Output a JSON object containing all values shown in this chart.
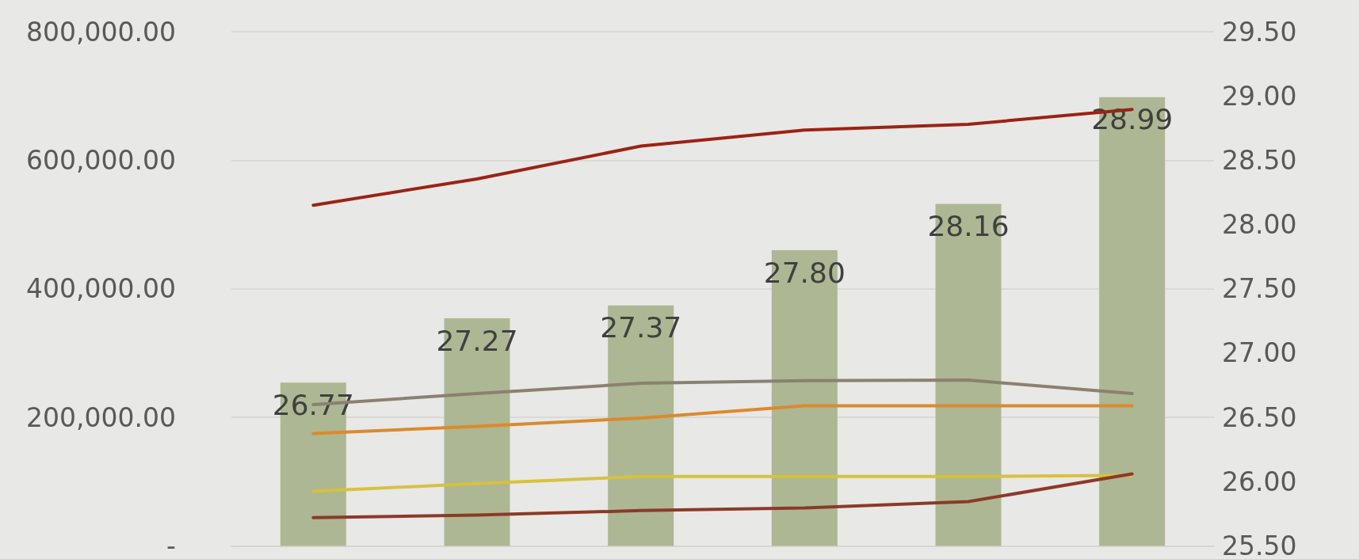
{
  "chart_data": {
    "type": "bar",
    "categories": [
      null,
      null,
      null,
      null,
      null,
      null
    ],
    "series": [
      {
        "axis": "y2",
        "color": "#adb793",
        "values": [
          26.77,
          27.27,
          27.37,
          27.8,
          28.16,
          28.99
        ],
        "value_labels": [
          "26.77",
          "27.27",
          "27.37",
          "27.80",
          "28.16",
          "28.99"
        ]
      },
      {
        "type": "line",
        "color": "#9b2314",
        "values": [
          530000,
          571000,
          622000,
          647000,
          656000,
          679000
        ]
      },
      {
        "type": "line",
        "color": "#8a8170",
        "values": [
          220000,
          237000,
          253000,
          257000,
          258000,
          237000
        ]
      },
      {
        "type": "line",
        "color": "#db8a2e",
        "values": [
          175000,
          186000,
          199000,
          218000,
          218000,
          218000
        ]
      },
      {
        "type": "line",
        "color": "#d6c23f",
        "values": [
          85000,
          97000,
          108000,
          108000,
          108000,
          110000
        ]
      },
      {
        "type": "line",
        "color": "#8b3a28",
        "values": [
          44000,
          48000,
          55000,
          59000,
          69000,
          112000
        ]
      }
    ],
    "ylim": [
      0,
      800000
    ],
    "yticks": [
      {
        "value": 0,
        "label": "-"
      },
      {
        "value": 200000,
        "label": "200,000.00"
      },
      {
        "value": 400000,
        "label": "400,000.00"
      },
      {
        "value": 600000,
        "label": "600,000.00"
      },
      {
        "value": 800000,
        "label": "800,000.00"
      }
    ],
    "y2lim": [
      25.5,
      29.5
    ],
    "y2ticks": [
      {
        "value": 25.5,
        "label": "25.50"
      },
      {
        "value": 26,
        "label": "26.00"
      },
      {
        "value": 26.5,
        "label": "26.50"
      },
      {
        "value": 27,
        "label": "27.00"
      },
      {
        "value": 27.5,
        "label": "27.50"
      },
      {
        "value": 28,
        "label": "28.00"
      },
      {
        "value": 28.5,
        "label": "28.50"
      },
      {
        "value": 29,
        "label": "29.00"
      },
      {
        "value": 29.5,
        "label": "29.50"
      }
    ],
    "grid": "y",
    "marker": "none",
    "line_style": "solid"
  }
}
